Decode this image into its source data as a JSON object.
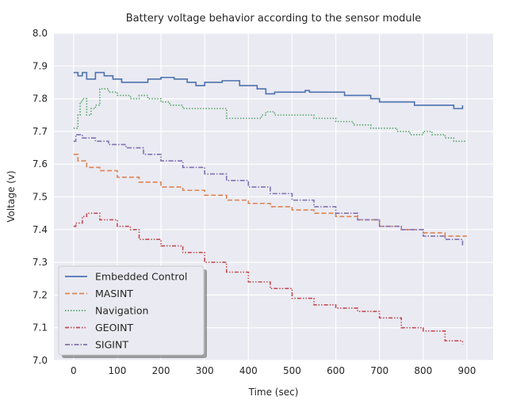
{
  "chart_data": {
    "type": "line",
    "title": "Battery voltage behavior according to the sensor module",
    "xlabel": "Time (sec)",
    "ylabel": "Voltage (v)",
    "xlim": [
      -45,
      960
    ],
    "ylim": [
      7.0,
      8.0
    ],
    "xticks": [
      0,
      100,
      200,
      300,
      400,
      500,
      600,
      700,
      800,
      900
    ],
    "yticks": [
      7.0,
      7.1,
      7.2,
      7.3,
      7.4,
      7.5,
      7.6,
      7.7,
      7.8,
      7.9,
      8.0
    ],
    "grid": true,
    "legend": "lower-left",
    "series": [
      {
        "name": "Embedded Control",
        "color": "#4c72b0",
        "style": "solid",
        "x": [
          0,
          10,
          20,
          30,
          50,
          70,
          90,
          110,
          150,
          170,
          200,
          230,
          260,
          280,
          300,
          340,
          380,
          420,
          440,
          460,
          530,
          540,
          600,
          620,
          680,
          700,
          760,
          780,
          870,
          890
        ],
        "y": [
          7.88,
          7.87,
          7.88,
          7.86,
          7.88,
          7.87,
          7.86,
          7.85,
          7.85,
          7.86,
          7.865,
          7.86,
          7.85,
          7.84,
          7.85,
          7.855,
          7.84,
          7.83,
          7.815,
          7.82,
          7.825,
          7.82,
          7.82,
          7.81,
          7.8,
          7.79,
          7.79,
          7.78,
          7.77,
          7.78
        ]
      },
      {
        "name": "MASINT",
        "color": "#dd8452",
        "style": "dashed",
        "x": [
          0,
          10,
          30,
          60,
          100,
          150,
          200,
          250,
          300,
          350,
          400,
          450,
          500,
          550,
          600,
          650,
          700,
          750,
          800,
          850,
          900
        ],
        "y": [
          7.63,
          7.61,
          7.59,
          7.58,
          7.56,
          7.545,
          7.53,
          7.52,
          7.505,
          7.49,
          7.48,
          7.47,
          7.46,
          7.45,
          7.44,
          7.43,
          7.41,
          7.4,
          7.39,
          7.38,
          7.38
        ]
      },
      {
        "name": "Navigation",
        "color": "#55a868",
        "style": "dotted",
        "x": [
          0,
          10,
          15,
          20,
          30,
          40,
          50,
          60,
          80,
          100,
          130,
          150,
          170,
          200,
          220,
          250,
          300,
          350,
          400,
          430,
          440,
          460,
          520,
          550,
          600,
          640,
          680,
          740,
          770,
          800,
          820,
          850,
          870,
          900
        ],
        "y": [
          7.71,
          7.75,
          7.79,
          7.8,
          7.75,
          7.77,
          7.78,
          7.83,
          7.82,
          7.81,
          7.8,
          7.81,
          7.8,
          7.79,
          7.78,
          7.77,
          7.77,
          7.74,
          7.74,
          7.75,
          7.76,
          7.75,
          7.75,
          7.74,
          7.73,
          7.72,
          7.71,
          7.7,
          7.69,
          7.7,
          7.69,
          7.68,
          7.67,
          7.67
        ]
      },
      {
        "name": "GEOINT",
        "color": "#c44e52",
        "style": "dashdotdot",
        "x": [
          0,
          5,
          20,
          30,
          60,
          100,
          130,
          150,
          200,
          250,
          300,
          350,
          400,
          450,
          500,
          550,
          600,
          650,
          700,
          750,
          800,
          850,
          890
        ],
        "y": [
          7.41,
          7.42,
          7.44,
          7.45,
          7.43,
          7.41,
          7.4,
          7.37,
          7.35,
          7.33,
          7.3,
          7.27,
          7.24,
          7.22,
          7.19,
          7.17,
          7.16,
          7.15,
          7.13,
          7.1,
          7.09,
          7.06,
          7.05
        ]
      },
      {
        "name": "SIGINT",
        "color": "#8172b3",
        "style": "dashdot",
        "x": [
          0,
          5,
          20,
          50,
          80,
          120,
          160,
          200,
          250,
          300,
          350,
          400,
          450,
          500,
          550,
          600,
          650,
          700,
          750,
          800,
          850,
          890
        ],
        "y": [
          7.67,
          7.69,
          7.68,
          7.67,
          7.66,
          7.65,
          7.63,
          7.61,
          7.59,
          7.57,
          7.55,
          7.53,
          7.51,
          7.49,
          7.47,
          7.45,
          7.43,
          7.41,
          7.4,
          7.38,
          7.37,
          7.35
        ]
      }
    ]
  }
}
